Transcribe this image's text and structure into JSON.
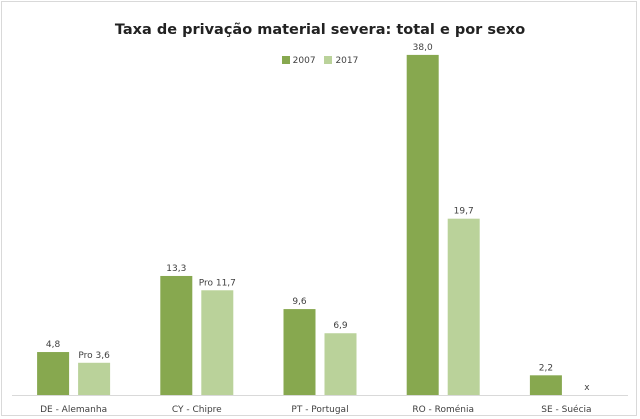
{
  "chart_data": {
    "type": "bar",
    "title": "Taxa de privação material severa: total e por sexo",
    "categories": [
      "DE - Alemanha",
      "CY - Chipre",
      "PT - Portugal",
      "RO - Roménia",
      "SE - Suécia"
    ],
    "series": [
      {
        "name": "2007",
        "color": "#87a84f",
        "values": [
          4.8,
          13.3,
          9.6,
          38.0,
          2.2
        ],
        "labels": [
          "4,8",
          "13,3",
          "9,6",
          "38,0",
          "2,2"
        ]
      },
      {
        "name": "2017",
        "color": "#bad29a",
        "values": [
          3.6,
          11.7,
          6.9,
          19.7,
          null
        ],
        "labels": [
          "Pro 3,6",
          "Pro 11,7",
          "6,9",
          "19,7",
          "x"
        ]
      }
    ],
    "ylim": [
      0,
      40
    ],
    "grid": false,
    "legend_position": "top"
  }
}
